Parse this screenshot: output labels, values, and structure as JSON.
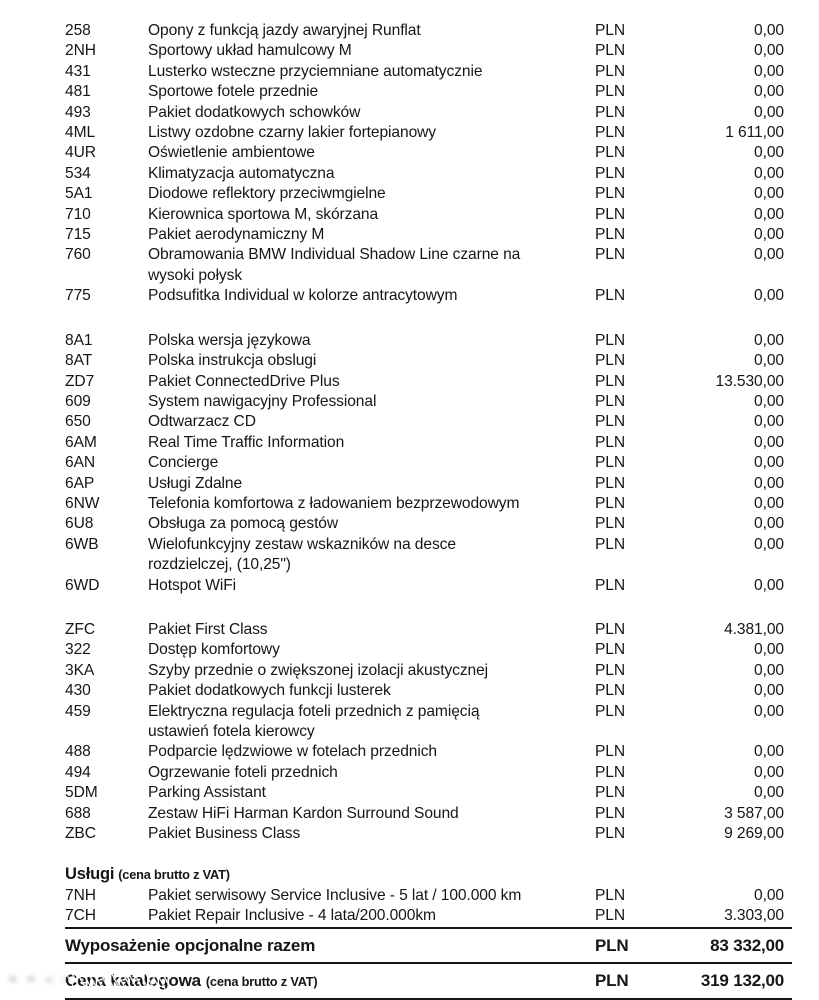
{
  "currency": "PLN",
  "text_color": "#161616",
  "groups": [
    {
      "rows": [
        {
          "code": "258",
          "desc": [
            "Opony z funkcją jazdy awaryjnej Runflat"
          ],
          "price": "0,00"
        },
        {
          "code": "2NH",
          "desc": [
            "Sportowy układ hamulcowy M"
          ],
          "price": "0,00"
        },
        {
          "code": "431",
          "desc": [
            "Lusterko wsteczne przyciemniane automatycznie"
          ],
          "price": "0,00"
        },
        {
          "code": "481",
          "desc": [
            "Sportowe fotele przednie"
          ],
          "price": "0,00"
        },
        {
          "code": "493",
          "desc": [
            "Pakiet dodatkowych schowków"
          ],
          "price": "0,00"
        },
        {
          "code": "4ML",
          "desc": [
            "Listwy ozdobne czarny lakier fortepianowy"
          ],
          "price": "1 611,00"
        },
        {
          "code": "4UR",
          "desc": [
            "Oświetlenie ambientowe"
          ],
          "price": "0,00"
        },
        {
          "code": "534",
          "desc": [
            "Klimatyzacja automatyczna"
          ],
          "price": "0,00"
        },
        {
          "code": "5A1",
          "desc": [
            "Diodowe reflektory przeciwmgielne"
          ],
          "price": "0,00"
        },
        {
          "code": "710",
          "desc": [
            "Kierownica sportowa M, skórzana"
          ],
          "price": "0,00"
        },
        {
          "code": "715",
          "desc": [
            "Pakiet aerodynamiczny M"
          ],
          "price": "0,00"
        },
        {
          "code": "760",
          "desc": [
            "Obramowania BMW Individual Shadow Line czarne na",
            "wysoki połysk"
          ],
          "price": "0,00"
        },
        {
          "code": "775",
          "desc": [
            "Podsufitka Individual w kolorze antracytowym"
          ],
          "price": "0,00"
        }
      ]
    },
    {
      "rows": [
        {
          "code": "8A1",
          "desc": [
            "Polska wersja językowa"
          ],
          "price": "0,00"
        },
        {
          "code": "8AT",
          "desc": [
            "Polska instrukcja obslugi"
          ],
          "price": "0,00"
        },
        {
          "code": "ZD7",
          "desc": [
            "Pakiet ConnectedDrive Plus"
          ],
          "price": "13.530,00"
        },
        {
          "code": "609",
          "desc": [
            "System nawigacyjny Professional"
          ],
          "price": "0,00"
        },
        {
          "code": "650",
          "desc": [
            "Odtwarzacz CD"
          ],
          "price": "0,00"
        },
        {
          "code": "6AM",
          "desc": [
            "Real Time Traffic Information"
          ],
          "price": "0,00"
        },
        {
          "code": "6AN",
          "desc": [
            "Concierge"
          ],
          "price": "0,00"
        },
        {
          "code": "6AP",
          "desc": [
            "Usługi Zdalne"
          ],
          "price": "0,00"
        },
        {
          "code": "6NW",
          "desc": [
            "Telefonia komfortowa z ładowaniem bezprzewodowym"
          ],
          "price": "0,00"
        },
        {
          "code": "6U8",
          "desc": [
            "Obsługa za pomocą gestów"
          ],
          "price": "0,00"
        },
        {
          "code": "6WB",
          "desc": [
            "Wielofunkcyjny zestaw wskazników na desce",
            "rozdzielczej, (10,25\")"
          ],
          "price": "0,00"
        },
        {
          "code": "6WD",
          "desc": [
            "Hotspot WiFi"
          ],
          "price": "0,00"
        }
      ]
    },
    {
      "rows": [
        {
          "code": "ZFC",
          "desc": [
            "Pakiet First Class"
          ],
          "price": "4.381,00"
        },
        {
          "code": "322",
          "desc": [
            "Dostęp komfortowy"
          ],
          "price": "0,00"
        },
        {
          "code": "3KA",
          "desc": [
            "Szyby przednie o zwiększonej izolacji akustycznej"
          ],
          "price": "0,00"
        },
        {
          "code": "430",
          "desc": [
            "Pakiet dodatkowych funkcji lusterek"
          ],
          "price": "0,00"
        },
        {
          "code": "459",
          "desc": [
            "Elektryczna regulacja foteli przednich z pamięcią",
            "ustawień fotela kierowcy"
          ],
          "price": "0,00"
        },
        {
          "code": "488",
          "desc": [
            "Podparcie lędzwiowe w fotelach przednich"
          ],
          "price": "0,00"
        },
        {
          "code": "494",
          "desc": [
            "Ogrzewanie foteli przednich"
          ],
          "price": "0,00"
        },
        {
          "code": "5DM",
          "desc": [
            "Parking Assistant"
          ],
          "price": "0,00"
        },
        {
          "code": "688",
          "desc": [
            "Zestaw HiFi Harman Kardon Surround Sound"
          ],
          "price": "3 587,00"
        },
        {
          "code": "ZBC",
          "desc": [
            "Pakiet Business Class"
          ],
          "price": "9 269,00"
        }
      ]
    }
  ],
  "services": {
    "title": "Usługi",
    "note": "(cena brutto z VAT)",
    "rows": [
      {
        "code": "7NH",
        "desc": [
          "Pakiet serwisowy Service Inclusive - 5 lat / 100.000 km"
        ],
        "price": "0,00"
      },
      {
        "code": "7CH",
        "desc": [
          "Pakiet Repair Inclusive - 4 lata/200.000km"
        ],
        "price": "3.303,00"
      }
    ]
  },
  "totals": [
    {
      "label": "Wyposażenie opcjonalne razem",
      "currency": "PLN",
      "price": "83 332,00"
    },
    {
      "label": "Cena katalogowa",
      "note": "(cena brutto z VAT)",
      "currency": "PLN",
      "price": "319 132,00"
    }
  ]
}
